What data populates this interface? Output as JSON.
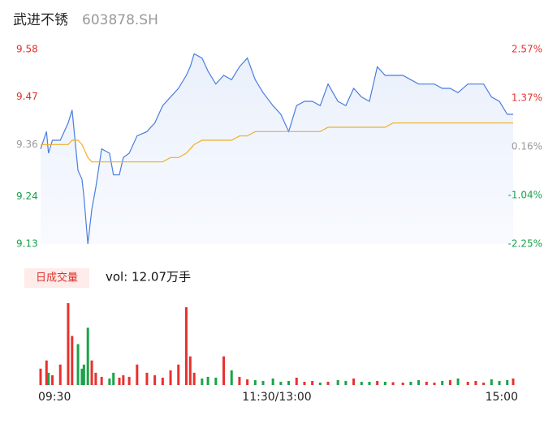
{
  "chart_data": {
    "type": "intraday",
    "title": "武进不锈",
    "subtitle": "603878.SH",
    "volume_button": "日成交量",
    "volume_label": "vol: 12.07万手",
    "xlim": [
      0,
      240
    ],
    "xticks": [
      {
        "value": 0,
        "label": "09:30"
      },
      {
        "value": 120,
        "label": "11:30/13:00"
      },
      {
        "value": 240,
        "label": "15:00"
      }
    ],
    "ylim": [
      9.13,
      9.58
    ],
    "yticks": [
      9.58,
      9.47,
      9.36,
      9.24,
      9.13
    ],
    "ytick_colors": [
      "#e0312c",
      "#e0312c",
      "#999999",
      "#15a34a",
      "#15a34a"
    ],
    "y2lim": [
      -2.25,
      2.57
    ],
    "y2ticks": [
      {
        "value": 2.57,
        "label": "2.57%"
      },
      {
        "value": 1.37,
        "label": "1.37%"
      },
      {
        "value": 0.16,
        "label": "0.16%"
      },
      {
        "value": -1.04,
        "label": "-1.04%"
      },
      {
        "value": -2.25,
        "label": "-2.25%"
      }
    ],
    "up_color": "#e8312f",
    "down_color": "#1aa34a",
    "x": [
      0,
      3,
      4,
      6,
      10,
      14,
      16,
      19,
      21,
      22,
      24,
      26,
      28,
      31,
      35,
      37,
      40,
      42,
      45,
      49,
      54,
      58,
      62,
      66,
      70,
      74,
      76,
      78,
      82,
      85,
      89,
      93,
      97,
      101,
      105,
      109,
      113,
      118,
      122,
      126,
      130,
      134,
      138,
      142,
      146,
      151,
      155,
      159,
      163,
      167,
      171,
      175,
      179,
      184,
      188,
      192,
      196,
      200,
      204,
      208,
      212,
      217,
      221,
      225,
      229,
      233,
      237,
      240
    ],
    "series": [
      {
        "name": "price",
        "color": "#4a7de0",
        "values": [
          9.35,
          9.39,
          9.34,
          9.37,
          9.37,
          9.41,
          9.44,
          9.3,
          9.28,
          9.24,
          9.13,
          9.21,
          9.26,
          9.35,
          9.34,
          9.29,
          9.29,
          9.33,
          9.34,
          9.38,
          9.39,
          9.41,
          9.45,
          9.47,
          9.49,
          9.52,
          9.54,
          9.57,
          9.56,
          9.53,
          9.5,
          9.52,
          9.51,
          9.54,
          9.56,
          9.51,
          9.48,
          9.45,
          9.43,
          9.39,
          9.45,
          9.46,
          9.46,
          9.45,
          9.5,
          9.46,
          9.45,
          9.49,
          9.47,
          9.46,
          9.54,
          9.52,
          9.52,
          9.52,
          9.51,
          9.5,
          9.5,
          9.5,
          9.49,
          9.49,
          9.48,
          9.5,
          9.5,
          9.5,
          9.47,
          9.46,
          9.43,
          9.43
        ]
      },
      {
        "name": "average",
        "color": "#f0b02a",
        "values": [
          9.36,
          9.36,
          9.36,
          9.36,
          9.36,
          9.36,
          9.37,
          9.37,
          9.36,
          9.35,
          9.33,
          9.32,
          9.32,
          9.32,
          9.32,
          9.32,
          9.32,
          9.32,
          9.32,
          9.32,
          9.32,
          9.32,
          9.32,
          9.33,
          9.33,
          9.34,
          9.35,
          9.36,
          9.37,
          9.37,
          9.37,
          9.37,
          9.37,
          9.38,
          9.38,
          9.39,
          9.39,
          9.39,
          9.39,
          9.39,
          9.39,
          9.39,
          9.39,
          9.39,
          9.4,
          9.4,
          9.4,
          9.4,
          9.4,
          9.4,
          9.4,
          9.4,
          9.41,
          9.41,
          9.41,
          9.41,
          9.41,
          9.41,
          9.41,
          9.41,
          9.41,
          9.41,
          9.41,
          9.41,
          9.41,
          9.41,
          9.41,
          9.41
        ]
      },
      {
        "name": "volume",
        "values": [
          2000,
          3000,
          1500,
          1200,
          2500,
          10000,
          6000,
          5000,
          2000,
          2500,
          7000,
          3000,
          1500,
          1000,
          800,
          1500,
          900,
          1200,
          1000,
          2500,
          1500,
          1200,
          900,
          1800,
          2500,
          9500,
          3500,
          1500,
          800,
          1000,
          900,
          3500,
          1800,
          1000,
          700,
          600,
          500,
          800,
          400,
          500,
          900,
          400,
          500,
          300,
          400,
          600,
          500,
          800,
          400,
          400,
          500,
          400,
          350,
          300,
          400,
          600,
          400,
          300,
          500,
          600,
          800,
          400,
          500,
          300,
          700,
          500,
          600,
          800
        ]
      }
    ]
  }
}
